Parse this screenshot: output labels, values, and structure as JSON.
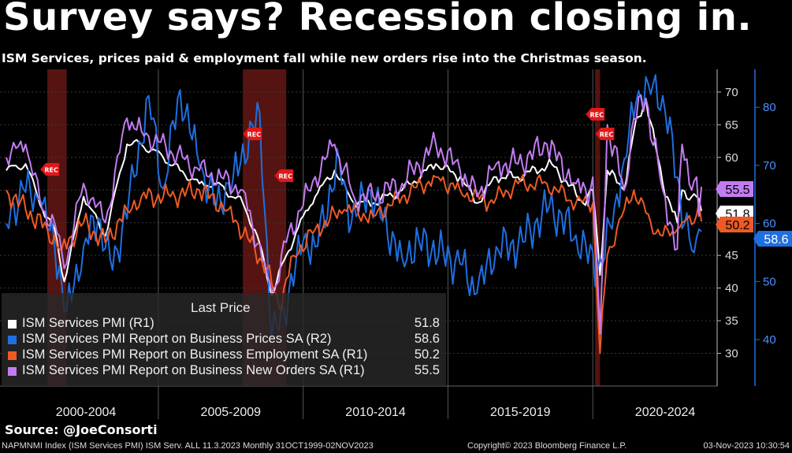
{
  "title": "Survey says? Recession closing in.",
  "subtitle": "ISM Services, prices paid & employment fall while new orders rise into the Christmas season.",
  "legend": {
    "header": "Last Price",
    "items": [
      {
        "label": "ISM Services PMI  (R1)",
        "value": "51.8",
        "color": "#ffffff"
      },
      {
        "label": "ISM Services PMI Report on Business Prices SA  (R2)",
        "value": "58.6",
        "color": "#1f6fe0"
      },
      {
        "label": "ISM Services PMI Report on Business Employment SA  (R1)",
        "value": "50.2",
        "color": "#ee5a24"
      },
      {
        "label": "ISM Services PMI Report on Business New Orders SA  (R1)",
        "value": "55.5",
        "color": "#c27cf0"
      }
    ]
  },
  "source": "Source: @JoeConsorti",
  "footer": {
    "left": "NAPMNMI Index (ISM Services PMI) ISM Serv. ALL 11.3.2023  Monthly 31OCT1999-02NOV2023",
    "center": "Copyright© 2023 Bloomberg Finance L.P.",
    "right": "03-Nov-2023 10:30:54"
  },
  "chart_data": {
    "type": "line",
    "x_range": [
      "1999-10",
      "2023-10"
    ],
    "x_period_labels": [
      "2000-2004",
      "2005-2009",
      "2010-2014",
      "2015-2019",
      "2020-2024"
    ],
    "y_left": {
      "ticks": [
        30,
        35,
        40,
        45,
        50,
        55,
        60,
        65,
        70
      ],
      "range": [
        25,
        73
      ]
    },
    "y_right": {
      "ticks": [
        40,
        50,
        60,
        70,
        80
      ],
      "range": [
        32,
        86
      ]
    },
    "recessions": [
      [
        "2001-03",
        "2001-11"
      ],
      [
        "2007-12",
        "2009-06"
      ],
      [
        "2020-02",
        "2020-04"
      ]
    ],
    "recession_marker_label": "REC",
    "last_value_labels": [
      {
        "text": "55.5",
        "color": "#c27cf0",
        "axis": "left",
        "value": 55.5
      },
      {
        "text": "51.8",
        "color": "#ffffff",
        "axis": "left",
        "value": 51.8
      },
      {
        "text": "50.2",
        "color": "#ee5a24",
        "axis": "left",
        "value": 50.2
      },
      {
        "text": "58.6",
        "color": "#1f6fe0",
        "axis": "right",
        "value": 58.6
      }
    ],
    "series": [
      {
        "name": "ISM Services PMI  (R1)",
        "axis": "left",
        "color": "#ffffff",
        "points": [
          [
            "1999-10",
            58
          ],
          [
            "2000-06",
            59
          ],
          [
            "2001-01",
            52
          ],
          [
            "2001-06",
            49
          ],
          [
            "2001-10",
            41
          ],
          [
            "2002-06",
            54
          ],
          [
            "2003-03",
            48
          ],
          [
            "2003-12",
            62
          ],
          [
            "2004-06",
            62
          ],
          [
            "2005-03",
            60
          ],
          [
            "2005-10",
            58
          ],
          [
            "2006-06",
            56
          ],
          [
            "2007-01",
            56
          ],
          [
            "2007-12",
            53
          ],
          [
            "2008-06",
            48
          ],
          [
            "2008-12",
            39
          ],
          [
            "2009-06",
            45
          ],
          [
            "2010-01",
            51
          ],
          [
            "2010-06",
            54
          ],
          [
            "2011-02",
            58
          ],
          [
            "2011-10",
            53
          ],
          [
            "2012-06",
            53
          ],
          [
            "2013-06",
            55
          ],
          [
            "2014-08",
            59
          ],
          [
            "2015-06",
            57
          ],
          [
            "2016-01",
            53
          ],
          [
            "2016-09",
            57
          ],
          [
            "2017-06",
            57
          ],
          [
            "2018-08",
            59
          ],
          [
            "2019-09",
            53
          ],
          [
            "2020-01",
            55
          ],
          [
            "2020-04",
            42
          ],
          [
            "2020-07",
            58
          ],
          [
            "2021-02",
            55
          ],
          [
            "2021-06",
            64
          ],
          [
            "2021-11",
            69
          ],
          [
            "2022-06",
            56
          ],
          [
            "2022-12",
            50
          ],
          [
            "2023-02",
            55
          ],
          [
            "2023-06",
            54
          ],
          [
            "2023-08",
            54
          ],
          [
            "2023-10",
            51.8
          ]
        ]
      },
      {
        "name": "ISM Services PMI Report on Business Prices SA  (R2)",
        "axis": "right",
        "color": "#1f6fe0",
        "points": [
          [
            "1999-10",
            60
          ],
          [
            "2000-05",
            66
          ],
          [
            "2000-12",
            64
          ],
          [
            "2001-06",
            56
          ],
          [
            "2001-11",
            45
          ],
          [
            "2002-06",
            56
          ],
          [
            "2002-12",
            61
          ],
          [
            "2003-06",
            52
          ],
          [
            "2004-03",
            68
          ],
          [
            "2004-09",
            82
          ],
          [
            "2005-03",
            66
          ],
          [
            "2005-10",
            83
          ],
          [
            "2006-06",
            70
          ],
          [
            "2007-01",
            63
          ],
          [
            "2007-08",
            68
          ],
          [
            "2008-07",
            79
          ],
          [
            "2008-12",
            40
          ],
          [
            "2009-05",
            45
          ],
          [
            "2010-01",
            57
          ],
          [
            "2010-06",
            56
          ],
          [
            "2011-04",
            71
          ],
          [
            "2011-09",
            60
          ],
          [
            "2012-04",
            66
          ],
          [
            "2013-06",
            54
          ],
          [
            "2014-01",
            57
          ],
          [
            "2015-06",
            53
          ],
          [
            "2016-01",
            48
          ],
          [
            "2016-09",
            56
          ],
          [
            "2017-06",
            56
          ],
          [
            "2018-07",
            63
          ],
          [
            "2019-06",
            58
          ],
          [
            "2020-03",
            52
          ],
          [
            "2020-05",
            53
          ],
          [
            "2020-10",
            63
          ],
          [
            "2021-02",
            71
          ],
          [
            "2021-07",
            81
          ],
          [
            "2021-12",
            84
          ],
          [
            "2022-06",
            82
          ],
          [
            "2022-12",
            68
          ],
          [
            "2023-03",
            60
          ],
          [
            "2023-07",
            55
          ],
          [
            "2023-09",
            59
          ],
          [
            "2023-10",
            58.6
          ]
        ]
      },
      {
        "name": "ISM Services PMI Report on Business Employment SA  (R1)",
        "axis": "left",
        "color": "#ee5a24",
        "points": [
          [
            "1999-10",
            55
          ],
          [
            "2000-06",
            52
          ],
          [
            "2001-03",
            49
          ],
          [
            "2001-09",
            46
          ],
          [
            "2002-06",
            50
          ],
          [
            "2003-03",
            47
          ],
          [
            "2003-12",
            52
          ],
          [
            "2004-06",
            54
          ],
          [
            "2005-06",
            54
          ],
          [
            "2006-06",
            55
          ],
          [
            "2007-06",
            52
          ],
          [
            "2008-03",
            47
          ],
          [
            "2008-10",
            43
          ],
          [
            "2009-03",
            37
          ],
          [
            "2009-09",
            45
          ],
          [
            "2010-06",
            49
          ],
          [
            "2011-06",
            52
          ],
          [
            "2012-06",
            51
          ],
          [
            "2013-06",
            54
          ],
          [
            "2014-08",
            57
          ],
          [
            "2015-06",
            55
          ],
          [
            "2016-06",
            53
          ],
          [
            "2017-06",
            56
          ],
          [
            "2018-06",
            56
          ],
          [
            "2019-06",
            53
          ],
          [
            "2020-01",
            53
          ],
          [
            "2020-04",
            30
          ],
          [
            "2020-07",
            45
          ],
          [
            "2021-02",
            52
          ],
          [
            "2021-06",
            55
          ],
          [
            "2022-01",
            50
          ],
          [
            "2022-06",
            48
          ],
          [
            "2022-12",
            49
          ],
          [
            "2023-02",
            50
          ],
          [
            "2023-07",
            50
          ],
          [
            "2023-09",
            53
          ],
          [
            "2023-10",
            50.2
          ]
        ]
      },
      {
        "name": "ISM Services PMI Report on Business New Orders SA  (R1)",
        "axis": "left",
        "color": "#c27cf0",
        "points": [
          [
            "1999-10",
            60
          ],
          [
            "2000-06",
            62
          ],
          [
            "2001-01",
            52
          ],
          [
            "2001-06",
            50
          ],
          [
            "2001-10",
            43
          ],
          [
            "2002-06",
            56
          ],
          [
            "2003-03",
            50
          ],
          [
            "2003-12",
            66
          ],
          [
            "2004-06",
            64
          ],
          [
            "2005-06",
            61
          ],
          [
            "2006-06",
            58
          ],
          [
            "2007-03",
            57
          ],
          [
            "2007-12",
            55
          ],
          [
            "2008-10",
            42
          ],
          [
            "2009-01",
            40
          ],
          [
            "2009-06",
            47
          ],
          [
            "2010-03",
            55
          ],
          [
            "2011-02",
            62
          ],
          [
            "2011-10",
            54
          ],
          [
            "2012-06",
            54
          ],
          [
            "2013-06",
            56
          ],
          [
            "2014-08",
            62
          ],
          [
            "2015-06",
            58
          ],
          [
            "2016-01",
            54
          ],
          [
            "2016-09",
            59
          ],
          [
            "2017-06",
            59
          ],
          [
            "2018-06",
            62
          ],
          [
            "2019-06",
            56
          ],
          [
            "2019-12",
            55
          ],
          [
            "2020-01",
            57
          ],
          [
            "2020-04",
            33
          ],
          [
            "2020-07",
            65
          ],
          [
            "2021-02",
            55
          ],
          [
            "2021-06",
            66
          ],
          [
            "2021-11",
            69
          ],
          [
            "2022-06",
            55
          ],
          [
            "2022-12",
            46
          ],
          [
            "2023-02",
            62
          ],
          [
            "2023-06",
            55
          ],
          [
            "2023-08",
            57
          ],
          [
            "2023-09",
            51
          ],
          [
            "2023-10",
            55.5
          ]
        ]
      }
    ]
  }
}
